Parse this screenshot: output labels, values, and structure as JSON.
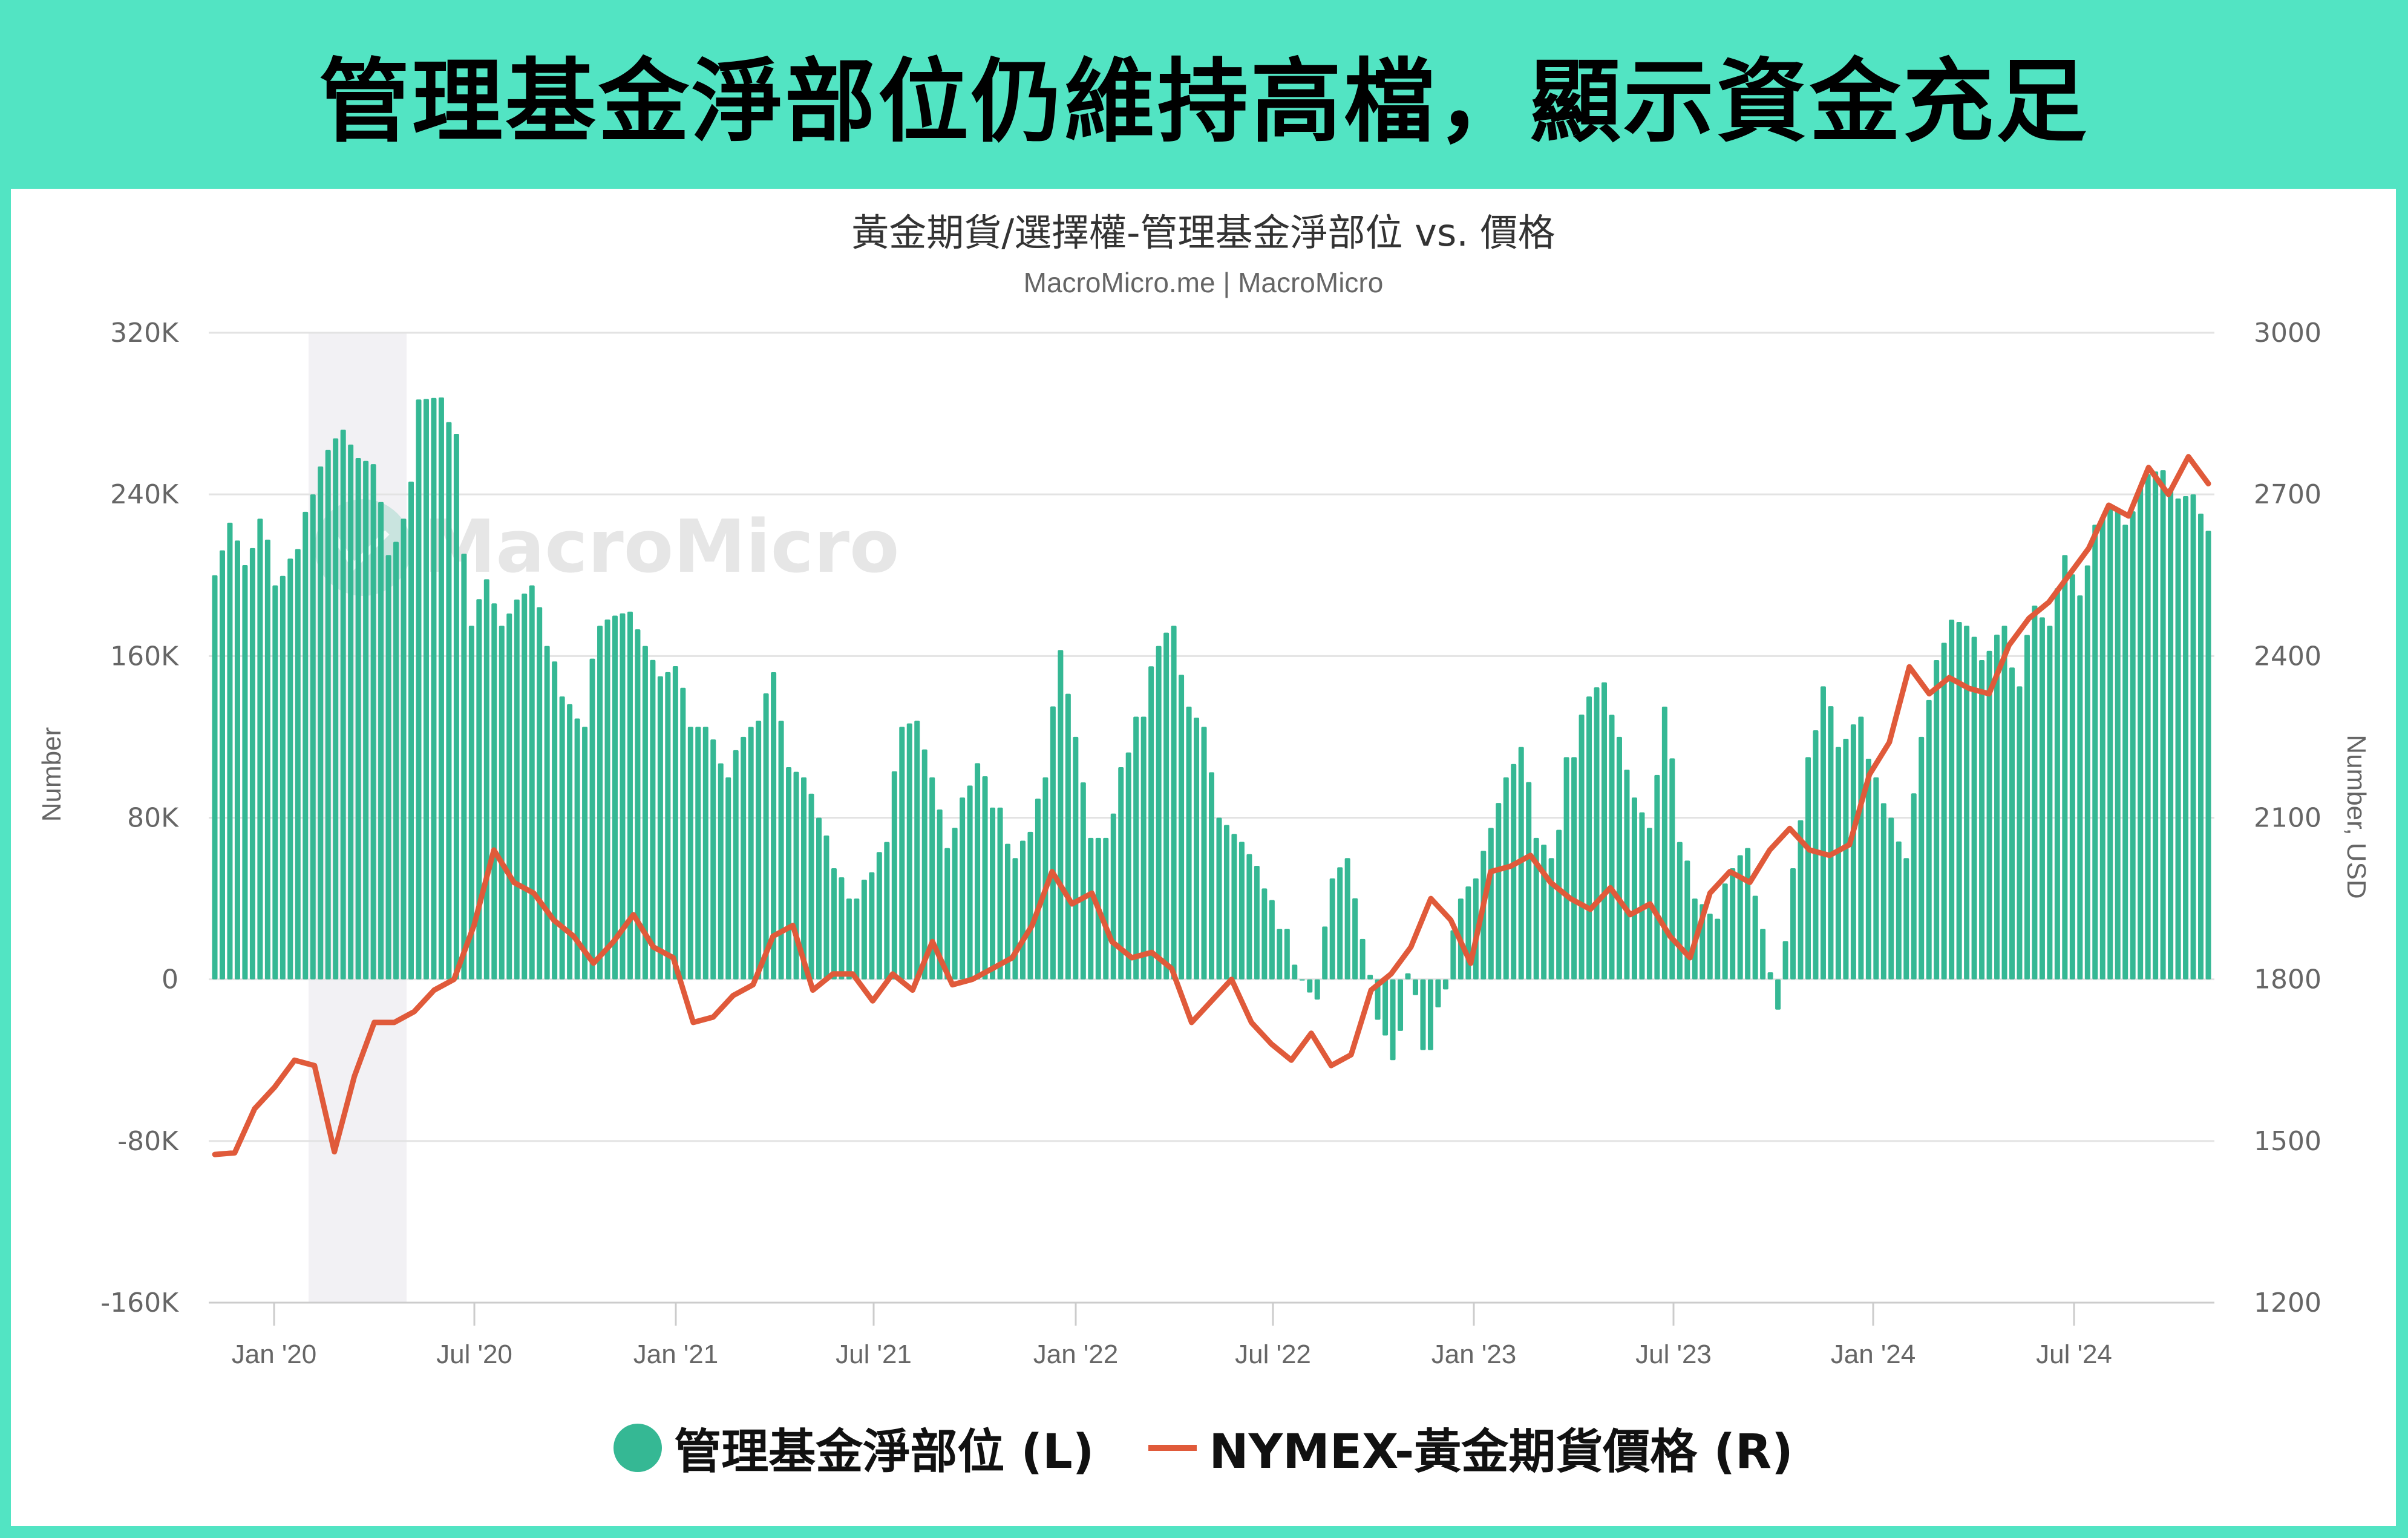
{
  "banner": {
    "title": "管理基金淨部位仍維持高檔，顯示資金充足"
  },
  "chart": {
    "title": "黃金期貨/選擇權-管理基金淨部位 vs. 價格",
    "subtitle": "MacroMicro.me | MacroMicro",
    "watermark": "MacroMicro",
    "left_axis_label": "Number",
    "right_axis_label": "Number, USD"
  },
  "legend": {
    "items": [
      {
        "label": "管理基金淨部位 (L)",
        "symbol": "circle",
        "color": "#35b894"
      },
      {
        "label": "NYMEX-黃金期貨價格 (R)",
        "symbol": "line",
        "color": "#e05a3a"
      }
    ]
  },
  "colors": {
    "frame": "#52e4c3",
    "bar": "#35b894",
    "line": "#e05a3a",
    "recession_band": "#f2f1f4",
    "grid": "#e3e3e3",
    "axis_text": "#666666"
  },
  "chart_data": {
    "type": "bar+line (dual axis)",
    "title": "黃金期貨/選擇權-管理基金淨部位 vs. 價格",
    "subtitle": "MacroMicro.me | MacroMicro",
    "xlabel": "",
    "ylabel_left": "Number",
    "ylabel_right": "Number, USD",
    "ylim_left": [
      -160000,
      320000
    ],
    "ylim_right": [
      1200,
      3000
    ],
    "yticks_left": [
      "320K",
      "240K",
      "160K",
      "80K",
      "0",
      "-80K",
      "-160K"
    ],
    "yticks_right": [
      "3000",
      "2700",
      "2400",
      "2100",
      "1800",
      "1500",
      "1200"
    ],
    "xticks": [
      "Jan '20",
      "Jul '20",
      "Jan '21",
      "Jul '21",
      "Jan '22",
      "Jul '22",
      "Jan '23",
      "Jul '23",
      "Jan '24",
      "Jul '24"
    ],
    "grid": true,
    "legend_position": "bottom",
    "shaded_period": {
      "start": "2020-02",
      "end": "2020-04",
      "note": "recession band"
    },
    "frequency": "weekly",
    "x_range": [
      "2019-11",
      "2024-12"
    ],
    "series": [
      {
        "name": "管理基金淨部位 (L)",
        "type": "bar",
        "axis": "left",
        "unit": "contracts",
        "anchors_month_value": [
          [
            "2019-11",
            200000
          ],
          [
            "2019-11b",
            226000
          ],
          [
            "2019-12",
            205000
          ],
          [
            "2019-12b",
            228000
          ],
          [
            "2019-12c",
            195000
          ],
          [
            "2020-01",
            213000
          ],
          [
            "2020-01b",
            240000
          ],
          [
            "2020-01c",
            262000
          ],
          [
            "2020-02",
            272000
          ],
          [
            "2020-02b",
            258000
          ],
          [
            "2020-02c",
            255000
          ],
          [
            "2020-03",
            210000
          ],
          [
            "2020-03b",
            228000
          ],
          [
            "2020-03c",
            287000
          ],
          [
            "2020-03d",
            288000
          ],
          [
            "2020-04",
            270000
          ],
          [
            "2020-04b",
            175000
          ],
          [
            "2020-04c",
            198000
          ],
          [
            "2020-05",
            175000
          ],
          [
            "2020-05b",
            188000
          ],
          [
            "2020-05c",
            195000
          ],
          [
            "2020-06",
            165000
          ],
          [
            "2020-06b",
            140000
          ],
          [
            "2020-06c",
            125000
          ],
          [
            "2020-07",
            175000
          ],
          [
            "2020-07b",
            180000
          ],
          [
            "2020-08",
            182000
          ],
          [
            "2020-08b",
            165000
          ],
          [
            "2020-09",
            150000
          ],
          [
            "2020-09b",
            155000
          ],
          [
            "2020-10",
            125000
          ],
          [
            "2020-10b",
            125000
          ],
          [
            "2020-11",
            100000
          ],
          [
            "2020-11b",
            120000
          ],
          [
            "2020-12",
            128000
          ],
          [
            "2021-01",
            152000
          ],
          [
            "2021-01b",
            105000
          ],
          [
            "2021-02",
            100000
          ],
          [
            "2021-02b",
            80000
          ],
          [
            "2021-03",
            55000
          ],
          [
            "2021-03b",
            40000
          ],
          [
            "2021-04",
            53000
          ],
          [
            "2021-04b",
            68000
          ],
          [
            "2021-05",
            125000
          ],
          [
            "2021-05b",
            128000
          ],
          [
            "2021-06",
            100000
          ],
          [
            "2021-06b",
            65000
          ],
          [
            "2021-07",
            90000
          ],
          [
            "2021-07b",
            107000
          ],
          [
            "2021-08",
            85000
          ],
          [
            "2021-09",
            60000
          ],
          [
            "2021-10",
            73000
          ],
          [
            "2021-11",
            100000
          ],
          [
            "2021-11b",
            163000
          ],
          [
            "2021-12",
            120000
          ],
          [
            "2021-12b",
            70000
          ],
          [
            "2022-01",
            70000
          ],
          [
            "2022-01b",
            105000
          ],
          [
            "2022-02",
            130000
          ],
          [
            "2022-03",
            165000
          ],
          [
            "2022-03b",
            175000
          ],
          [
            "2022-04",
            135000
          ],
          [
            "2022-04b",
            125000
          ],
          [
            "2022-05",
            80000
          ],
          [
            "2022-05b",
            72000
          ],
          [
            "2022-06",
            62000
          ],
          [
            "2022-06b",
            45000
          ],
          [
            "2022-07",
            25000
          ],
          [
            "2022-07b",
            0
          ],
          [
            "2022-08",
            -10000
          ],
          [
            "2022-08b",
            50000
          ],
          [
            "2022-09",
            60000
          ],
          [
            "2022-09b",
            20000
          ],
          [
            "2022-10",
            -20000
          ],
          [
            "2022-10b",
            -40000
          ],
          [
            "2022-11",
            3000
          ],
          [
            "2022-11b",
            -35000
          ],
          [
            "2022-12",
            -5000
          ],
          [
            "2023-01",
            40000
          ],
          [
            "2023-01b",
            50000
          ],
          [
            "2023-02",
            75000
          ],
          [
            "2023-02b",
            100000
          ],
          [
            "2023-03",
            115000
          ],
          [
            "2023-03b",
            70000
          ],
          [
            "2023-04",
            60000
          ],
          [
            "2023-04b",
            110000
          ],
          [
            "2023-05",
            140000
          ],
          [
            "2023-05b",
            147000
          ],
          [
            "2023-06",
            120000
          ],
          [
            "2023-06b",
            90000
          ],
          [
            "2023-07",
            75000
          ],
          [
            "2023-07b",
            135000
          ],
          [
            "2023-08",
            68000
          ],
          [
            "2023-08b",
            40000
          ],
          [
            "2023-09",
            30000
          ],
          [
            "2023-09b",
            55000
          ],
          [
            "2023-10",
            65000
          ],
          [
            "2023-10b",
            25000
          ],
          [
            "2023-10c",
            -15000
          ],
          [
            "2023-11",
            55000
          ],
          [
            "2023-11b",
            110000
          ],
          [
            "2023-12",
            145000
          ],
          [
            "2023-12b",
            115000
          ],
          [
            "2024-01",
            130000
          ],
          [
            "2024-01b",
            100000
          ],
          [
            "2024-02",
            80000
          ],
          [
            "2024-02b",
            60000
          ],
          [
            "2024-03",
            120000
          ],
          [
            "2024-03b",
            158000
          ],
          [
            "2024-04",
            178000
          ],
          [
            "2024-04b",
            175000
          ],
          [
            "2024-05",
            158000
          ],
          [
            "2024-05b",
            175000
          ],
          [
            "2024-06",
            145000
          ],
          [
            "2024-06b",
            185000
          ],
          [
            "2024-07",
            175000
          ],
          [
            "2024-07b",
            210000
          ],
          [
            "2024-08",
            190000
          ],
          [
            "2024-08b",
            225000
          ],
          [
            "2024-09",
            235000
          ],
          [
            "2024-09b",
            225000
          ],
          [
            "2024-10",
            250000
          ],
          [
            "2024-10b",
            252000
          ],
          [
            "2024-11",
            238000
          ],
          [
            "2024-11b",
            240000
          ],
          [
            "2024-12",
            222000
          ]
        ]
      },
      {
        "name": "NYMEX-黃金期貨價格 (R)",
        "type": "line",
        "axis": "right",
        "unit": "USD",
        "anchors_month_value": [
          [
            "2019-11",
            1475
          ],
          [
            "2019-12",
            1478
          ],
          [
            "2020-01",
            1560
          ],
          [
            "2020-02",
            1600
          ],
          [
            "2020-02b",
            1650
          ],
          [
            "2020-03",
            1640
          ],
          [
            "2020-03b",
            1480
          ],
          [
            "2020-03c",
            1620
          ],
          [
            "2020-04",
            1720
          ],
          [
            "2020-05",
            1720
          ],
          [
            "2020-06",
            1740
          ],
          [
            "2020-06b",
            1780
          ],
          [
            "2020-07",
            1800
          ],
          [
            "2020-07b",
            1900
          ],
          [
            "2020-08",
            2040
          ],
          [
            "2020-08b",
            1980
          ],
          [
            "2020-09",
            1960
          ],
          [
            "2020-10",
            1910
          ],
          [
            "2020-11",
            1880
          ],
          [
            "2020-11b",
            1830
          ],
          [
            "2020-12",
            1870
          ],
          [
            "2021-01",
            1920
          ],
          [
            "2021-01b",
            1860
          ],
          [
            "2021-02",
            1840
          ],
          [
            "2021-03",
            1720
          ],
          [
            "2021-03b",
            1730
          ],
          [
            "2021-04",
            1770
          ],
          [
            "2021-04b",
            1790
          ],
          [
            "2021-05",
            1880
          ],
          [
            "2021-06",
            1900
          ],
          [
            "2021-06b",
            1780
          ],
          [
            "2021-07",
            1810
          ],
          [
            "2021-08",
            1810
          ],
          [
            "2021-08b",
            1760
          ],
          [
            "2021-09",
            1810
          ],
          [
            "2021-10",
            1780
          ],
          [
            "2021-11",
            1870
          ],
          [
            "2021-11b",
            1790
          ],
          [
            "2021-12",
            1800
          ],
          [
            "2022-01",
            1820
          ],
          [
            "2022-02",
            1840
          ],
          [
            "2022-02b",
            1900
          ],
          [
            "2022-03",
            2000
          ],
          [
            "2022-03b",
            1940
          ],
          [
            "2022-04",
            1960
          ],
          [
            "2022-05",
            1870
          ],
          [
            "2022-05b",
            1840
          ],
          [
            "2022-06",
            1850
          ],
          [
            "2022-06b",
            1820
          ],
          [
            "2022-07",
            1720
          ],
          [
            "2022-07b",
            1760
          ],
          [
            "2022-08",
            1800
          ],
          [
            "2022-09",
            1720
          ],
          [
            "2022-09b",
            1680
          ],
          [
            "2022-10",
            1650
          ],
          [
            "2022-10b",
            1700
          ],
          [
            "2022-11",
            1640
          ],
          [
            "2022-11b",
            1660
          ],
          [
            "2022-12",
            1780
          ],
          [
            "2023-01",
            1810
          ],
          [
            "2023-01b",
            1860
          ],
          [
            "2023-02",
            1950
          ],
          [
            "2023-02b",
            1910
          ],
          [
            "2023-03",
            1830
          ],
          [
            "2023-03b",
            2000
          ],
          [
            "2023-04",
            2010
          ],
          [
            "2023-05",
            2030
          ],
          [
            "2023-05b",
            1980
          ],
          [
            "2023-06",
            1950
          ],
          [
            "2023-07",
            1930
          ],
          [
            "2023-07b",
            1970
          ],
          [
            "2023-08",
            1920
          ],
          [
            "2023-09",
            1940
          ],
          [
            "2023-09b",
            1880
          ],
          [
            "2023-10",
            1840
          ],
          [
            "2023-10b",
            1960
          ],
          [
            "2023-11",
            2000
          ],
          [
            "2023-11b",
            1980
          ],
          [
            "2023-12",
            2040
          ],
          [
            "2023-12b",
            2080
          ],
          [
            "2024-01",
            2040
          ],
          [
            "2024-02",
            2030
          ],
          [
            "2024-02b",
            2050
          ],
          [
            "2024-03",
            2180
          ],
          [
            "2024-03b",
            2240
          ],
          [
            "2024-04",
            2380
          ],
          [
            "2024-04b",
            2330
          ],
          [
            "2024-05",
            2360
          ],
          [
            "2024-05b",
            2340
          ],
          [
            "2024-06",
            2330
          ],
          [
            "2024-07",
            2420
          ],
          [
            "2024-07b",
            2470
          ],
          [
            "2024-08",
            2500
          ],
          [
            "2024-08b",
            2550
          ],
          [
            "2024-09",
            2600
          ],
          [
            "2024-09b",
            2680
          ],
          [
            "2024-10",
            2660
          ],
          [
            "2024-10b",
            2750
          ],
          [
            "2024-11",
            2700
          ],
          [
            "2024-11b",
            2770
          ],
          [
            "2024-12",
            2720
          ]
        ]
      }
    ]
  }
}
